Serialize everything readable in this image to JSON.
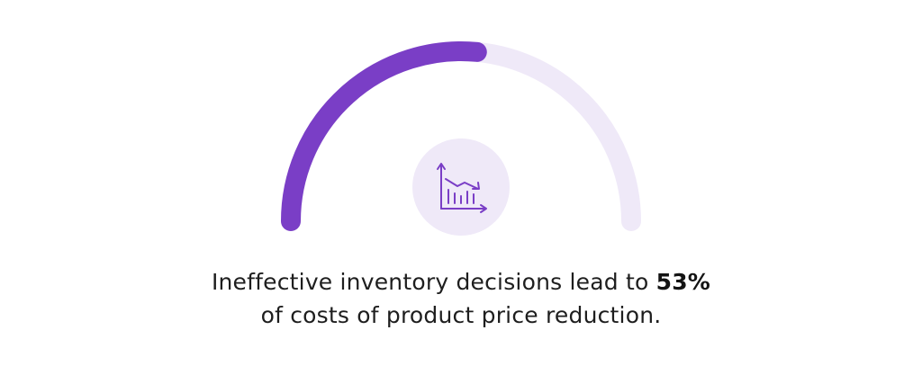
{
  "chart_data": {
    "type": "gauge",
    "value": 53,
    "max": 100,
    "value_label": "53%",
    "icon": "declining-bar-chart-icon",
    "colors": {
      "fill": "#7a3ec6",
      "track": "#efe9f8",
      "icon_bg": "#efe9f8",
      "icon": "#7a3ec6"
    }
  },
  "caption": {
    "line1_text": "Ineffective inventory decisions lead to ",
    "highlight": "53%",
    "line2_text": "of costs of product price reduction."
  }
}
